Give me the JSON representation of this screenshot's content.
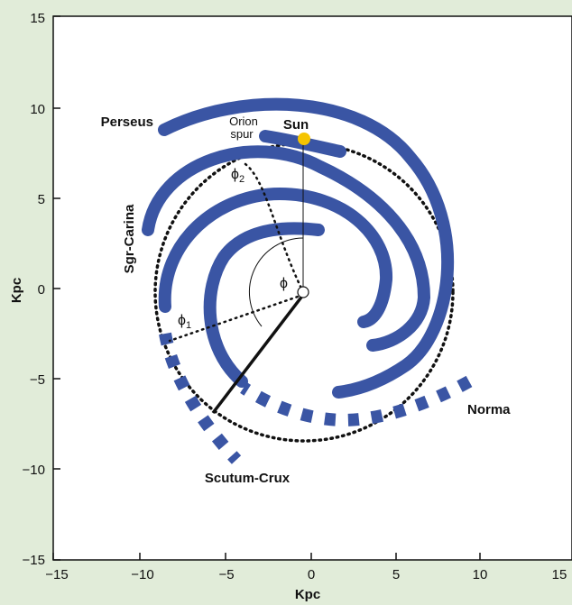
{
  "colors": {
    "background": "#e1ecd9",
    "plot_area": "#ffffff",
    "arm": "#3a55a4",
    "sun": "#f5c400",
    "ink": "#111111"
  },
  "axes": {
    "xlabel": "Kpc",
    "ylabel": "Kpc",
    "x_ticks": [
      "−15",
      "−10",
      "−5",
      "0",
      "5",
      "10",
      "15"
    ],
    "y_ticks": [
      "15",
      "10",
      "5",
      "0",
      "−5",
      "−10",
      "−15"
    ],
    "xlim": [
      -15,
      15
    ],
    "ylim": [
      -15,
      15
    ]
  },
  "labels": {
    "perseus": "Perseus",
    "orion_line1": "Orion",
    "orion_line2": "spur",
    "sun": "Sun",
    "sgr_carina": "Sgr-Carina",
    "norma": "Norma",
    "scutum_crux": "Scutum-Crux",
    "phi": "ϕ",
    "phi1": "ϕ",
    "phi1_sub": "1",
    "phi2": "ϕ",
    "phi2_sub": "2"
  },
  "diagram": {
    "sun_position": [
      0,
      8.3
    ],
    "circle_radius": 8.4,
    "arms": [
      "Perseus",
      "Orion spur",
      "Sgr-Carina",
      "Norma",
      "Scutum-Crux"
    ]
  }
}
